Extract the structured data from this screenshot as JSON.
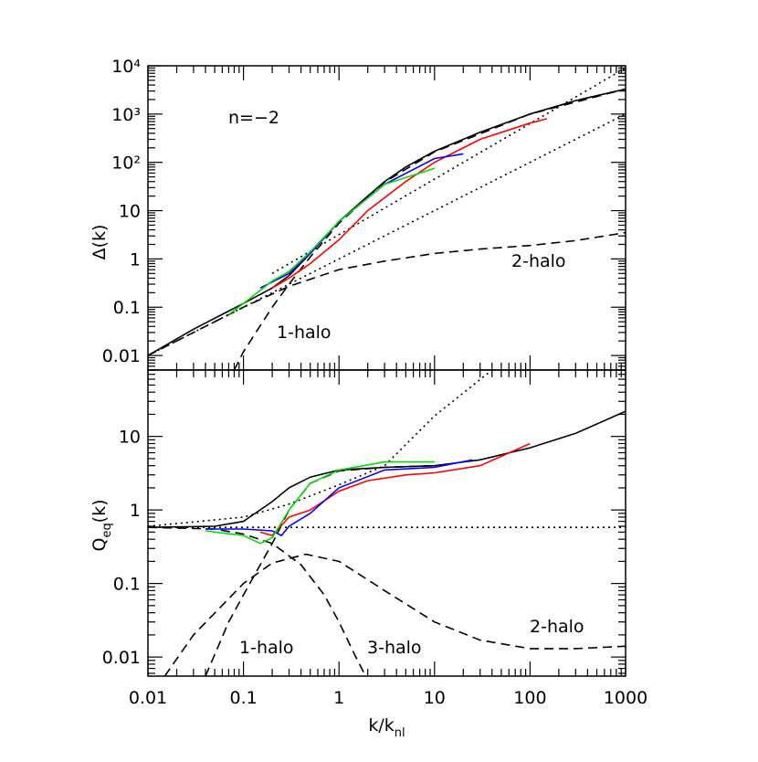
{
  "chart_data": [
    {
      "type": "line",
      "ylabel": "Δ(k)",
      "xlog": true,
      "ylog": true,
      "xlim": [
        0.01,
        1000
      ],
      "xticks": [
        0.01,
        0.1,
        1,
        10,
        100,
        1000
      ],
      "ylim": [
        0.005,
        10000
      ],
      "yticks": [
        {
          "value": 10000,
          "label": "10⁴"
        },
        {
          "value": 1000,
          "label": "10³"
        },
        {
          "value": 100,
          "label": "10²"
        },
        10,
        1,
        0.1,
        0.01
      ],
      "annotations": [
        "n=−2",
        "2-halo",
        "1-halo"
      ],
      "series": [
        {
          "color": "#000000",
          "dash": "solid",
          "x": [
            0.01,
            0.03,
            0.1,
            0.2,
            0.3,
            0.5,
            1,
            2,
            3,
            5,
            10,
            30,
            100,
            300,
            1000
          ],
          "values": [
            0.01,
            0.035,
            0.12,
            0.25,
            0.45,
            1.3,
            6,
            20,
            40,
            80,
            170,
            420,
            1000,
            1900,
            3300
          ]
        },
        {
          "color": "#000000",
          "dash": "dotted",
          "x": [
            0.01,
            1000
          ],
          "values": [
            0.01,
            1000
          ]
        },
        {
          "color": "#000000",
          "dash": "dotted",
          "x": [
            0.2,
            1000
          ],
          "values": [
            0.5,
            9000
          ]
        },
        {
          "color": "#000000",
          "dash": "dashed",
          "x": [
            0.01,
            0.1,
            0.3,
            1,
            3,
            10,
            30,
            100,
            300,
            1000
          ],
          "values": [
            0.01,
            0.1,
            0.27,
            0.6,
            0.9,
            1.3,
            1.6,
            1.9,
            2.4,
            3.5
          ]
        },
        {
          "color": "#000000",
          "dash": "dashed",
          "x": [
            0.08,
            0.1,
            0.2,
            0.3,
            0.5,
            1,
            3,
            10,
            100,
            1000
          ],
          "values": [
            0.005,
            0.012,
            0.1,
            0.3,
            1.1,
            5.5,
            39,
            165,
            1000,
            3300
          ]
        },
        {
          "color": "#ff0000",
          "dash": "solid",
          "x": [
            0.2,
            0.3,
            0.5,
            1,
            2,
            5,
            10,
            30,
            100,
            150
          ],
          "values": [
            0.25,
            0.4,
            0.8,
            2.5,
            10,
            40,
            100,
            300,
            650,
            800
          ]
        },
        {
          "color": "#0000ff",
          "dash": "solid",
          "x": [
            0.15,
            0.3,
            0.5,
            1,
            3,
            10,
            20
          ],
          "values": [
            0.25,
            0.5,
            1.3,
            6,
            35,
            120,
            150
          ]
        },
        {
          "color": "#00dd00",
          "dash": "solid",
          "x": [
            0.07,
            0.1,
            0.2,
            0.3,
            0.5,
            1,
            3,
            10
          ],
          "values": [
            0.07,
            0.12,
            0.35,
            0.55,
            1.4,
            6,
            35,
            75
          ]
        }
      ]
    },
    {
      "type": "line",
      "ylabel": {
        "main": "Q",
        "sub": "eq",
        "suffix": "(k)"
      },
      "xlabel": {
        "main": "k/k",
        "sub": "nl"
      },
      "xlog": true,
      "ylog": true,
      "xlim": [
        0.01,
        1000
      ],
      "xticks": [
        0.01,
        0.1,
        1,
        10,
        100,
        1000
      ],
      "ylim": [
        0.0055,
        80
      ],
      "yticks": [
        10,
        1,
        0.1,
        0.01
      ],
      "annotations": [
        "1-halo",
        "3-halo",
        "2-halo"
      ],
      "series": [
        {
          "color": "#000000",
          "dash": "solid",
          "x": [
            0.01,
            0.05,
            0.1,
            0.2,
            0.3,
            0.5,
            1,
            3,
            10,
            30,
            100,
            300,
            1000
          ],
          "values": [
            0.58,
            0.6,
            0.7,
            1.3,
            2,
            2.8,
            3.5,
            3.8,
            4,
            4.8,
            7,
            11,
            22
          ]
        },
        {
          "color": "#000000",
          "dash": "dotted",
          "x": [
            0.01,
            1000
          ],
          "values": [
            0.58,
            0.58
          ]
        },
        {
          "color": "#000000",
          "dash": "dotted",
          "x": [
            0.01,
            0.1,
            0.3,
            1,
            3,
            10,
            40
          ],
          "values": [
            0.6,
            0.8,
            1.2,
            2.2,
            4,
            19,
            80
          ]
        },
        {
          "color": "#000000",
          "dash": "dashed",
          "x": [
            0.04,
            0.07,
            0.1,
            0.2,
            0.3,
            0.5,
            1,
            3,
            10
          ],
          "values": [
            0.0055,
            0.03,
            0.07,
            0.35,
            1,
            2.3,
            3.4,
            3.8,
            4
          ]
        },
        {
          "color": "#000000",
          "dash": "dashed",
          "x": [
            0.015,
            0.03,
            0.1,
            0.2,
            0.45,
            1,
            3,
            10,
            30,
            100,
            300,
            1000
          ],
          "values": [
            0.0055,
            0.02,
            0.1,
            0.19,
            0.25,
            0.2,
            0.08,
            0.03,
            0.017,
            0.013,
            0.013,
            0.014
          ]
        },
        {
          "color": "#000000",
          "dash": "dashed",
          "x": [
            0.01,
            0.05,
            0.1,
            0.2,
            0.4,
            0.7,
            1,
            1.5,
            1.9
          ],
          "values": [
            0.58,
            0.55,
            0.47,
            0.35,
            0.18,
            0.07,
            0.03,
            0.01,
            0.0055
          ]
        },
        {
          "color": "#ff0000",
          "dash": "solid",
          "x": [
            0.15,
            0.2,
            0.3,
            0.5,
            1,
            2,
            5,
            10,
            30,
            100
          ],
          "values": [
            0.5,
            0.45,
            0.8,
            1,
            1.8,
            2.5,
            3,
            3.2,
            4,
            8
          ]
        },
        {
          "color": "#0000ff",
          "dash": "solid",
          "x": [
            0.04,
            0.1,
            0.2,
            0.25,
            0.3,
            0.5,
            1,
            3,
            10,
            25
          ],
          "values": [
            0.55,
            0.55,
            0.52,
            0.45,
            0.6,
            0.9,
            2,
            3.5,
            3.8,
            4.8
          ]
        },
        {
          "color": "#00dd00",
          "dash": "solid",
          "x": [
            0.04,
            0.1,
            0.15,
            0.2,
            0.3,
            0.5,
            1,
            3,
            10
          ],
          "values": [
            0.52,
            0.45,
            0.35,
            0.42,
            1,
            2.3,
            3.5,
            4.5,
            4.5
          ]
        }
      ]
    }
  ]
}
